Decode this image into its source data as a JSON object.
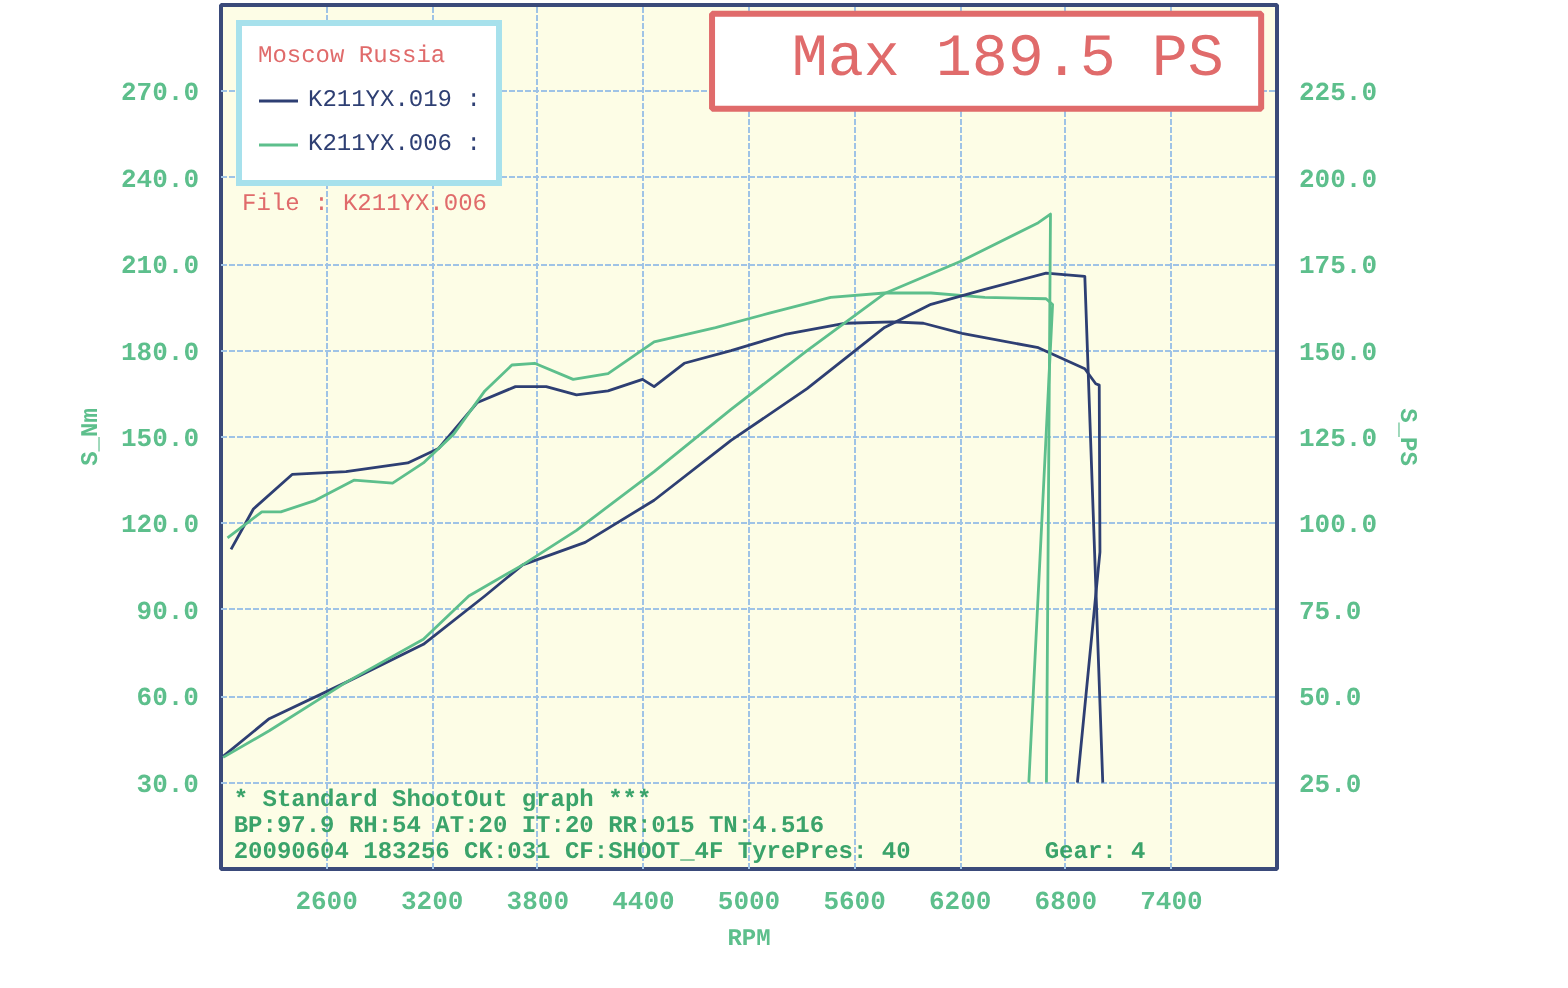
{
  "chart_data": {
    "type": "line",
    "title": "Max 189.5 PS",
    "xlabel": "RPM",
    "ylabel": "S_Nm",
    "y2label": "S_PS",
    "legend_title": "Moscow Russia",
    "annotations": [
      "File      : K211YX.006",
      "* Standard ShootOut graph ***",
      "BP:97.9  RH:54  AT:20  IT:20  RR:015  TN:4.516",
      "20090604 183256  CK:031  CF:SHOOT_4F  TyrePres: 40",
      "Gear: 4"
    ],
    "xlim": [
      2000,
      8000
    ],
    "xticks": [
      2600,
      3200,
      3800,
      4400,
      5000,
      5600,
      6200,
      6800,
      7400
    ],
    "ylim": [
      0,
      300
    ],
    "yticks": [
      {
        "value": 30,
        "label": "30.0"
      },
      {
        "value": 60,
        "label": "60.0"
      },
      {
        "value": 90,
        "label": "90.0"
      },
      {
        "value": 120,
        "label": "120.0"
      },
      {
        "value": 150,
        "label": "150.0"
      },
      {
        "value": 180,
        "label": "180.0"
      },
      {
        "value": 210,
        "label": "210.0"
      },
      {
        "value": 240,
        "label": "240.0"
      },
      {
        "value": 270,
        "label": "270.0"
      }
    ],
    "y2lim": [
      0,
      250
    ],
    "y2ticks": [
      {
        "value": 25,
        "label": "25.0"
      },
      {
        "value": 50,
        "label": "50.0"
      },
      {
        "value": 75,
        "label": "75.0"
      },
      {
        "value": 100,
        "label": "100.0"
      },
      {
        "value": 125,
        "label": "125.0"
      },
      {
        "value": 150,
        "label": "150.0"
      },
      {
        "value": 175,
        "label": "175.0"
      },
      {
        "value": 200,
        "label": "200.0"
      },
      {
        "value": 225,
        "label": "225.0"
      }
    ],
    "grid": true,
    "legend": "top left",
    "marker": "none",
    "line_style": "solid",
    "series": [
      {
        "name": "K211YX.019 :",
        "color": "#2e3f73",
        "x": [
          2057,
          2184,
          2404,
          2710,
          3061,
          3236,
          3457,
          3673,
          3848,
          4020,
          4199,
          4395,
          4461,
          4632,
          4898,
          5204,
          5550,
          5816,
          5991,
          6210,
          6644,
          6908,
          6970,
          6990,
          6994,
          6866
        ],
        "values": [
          111,
          125,
          137,
          138,
          141,
          146,
          162,
          167.5,
          167.5,
          164.6,
          166,
          170,
          167.5,
          175.6,
          180,
          185.6,
          189.5,
          190,
          189.5,
          186,
          181,
          173.7,
          168.5,
          168,
          110,
          30
        ]
      },
      {
        "name": "K211YX.006 :",
        "color": "#5dbf8c",
        "x": [
          2037,
          2232,
          2340,
          2537,
          2755,
          2975,
          3150,
          3322,
          3499,
          3653,
          3782,
          4001,
          4199,
          4461,
          4810,
          5116,
          5464,
          5770,
          6034,
          6340,
          6688,
          6725,
          6590
        ],
        "values": [
          115,
          124,
          124,
          128,
          135,
          134,
          141,
          151,
          166,
          175,
          175.6,
          170,
          172,
          183,
          188,
          193,
          198.5,
          200,
          200,
          198.5,
          198,
          196,
          30
        ]
      },
      {
        "color": "#2e3f73",
        "axis": "y2",
        "x": [
          2012,
          2274,
          2710,
          3150,
          3499,
          3714,
          4069,
          4461,
          4898,
          5330,
          5770,
          6034,
          6340,
          6688,
          6908,
          7010
        ],
        "values": [
          32.6,
          43.5,
          54,
          65,
          79,
          88,
          94.5,
          106.7,
          124,
          139,
          156.7,
          163.4,
          167.7,
          172.4,
          171.5,
          25
        ]
      },
      {
        "color": "#5dbf8c",
        "axis": "y2",
        "x": [
          2012,
          2274,
          2710,
          3150,
          3408,
          3714,
          4020,
          4461,
          4898,
          5330,
          5770,
          6210,
          6644,
          6713,
          6690
        ],
        "values": [
          32.3,
          40,
          54,
          66.5,
          79,
          88,
          98,
          115,
          133,
          150,
          166.5,
          176,
          187,
          189.5,
          25
        ]
      }
    ]
  }
}
